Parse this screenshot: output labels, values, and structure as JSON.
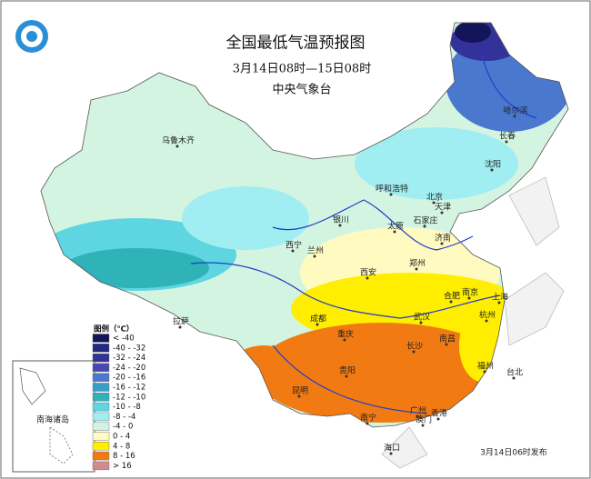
{
  "header": {
    "title": "全国最低气温预报图",
    "subtitle": "3月14日08时—15日08时",
    "issuer": "中央气象台"
  },
  "legend": {
    "title": "图例（℃）",
    "items": [
      {
        "label": "< -40",
        "color": "#14145a"
      },
      {
        "label": "-40 - -32",
        "color": "#1f2a80"
      },
      {
        "label": "-32 - -24",
        "color": "#32329a"
      },
      {
        "label": "-24 - -20",
        "color": "#4848b4"
      },
      {
        "label": "-20 - -16",
        "color": "#4a78cf"
      },
      {
        "label": "-16 - -12",
        "color": "#3a9cc8"
      },
      {
        "label": "-12 - -10",
        "color": "#2fb2b8"
      },
      {
        "label": "-10 - -8",
        "color": "#5ed6e2"
      },
      {
        "label": "-8 - -4",
        "color": "#a0eef2"
      },
      {
        "label": "-4 - 0",
        "color": "#d4f4e2"
      },
      {
        "label": "0 - 4",
        "color": "#fffbc0"
      },
      {
        "label": "4 - 8",
        "color": "#ffee00"
      },
      {
        "label": "8 - 16",
        "color": "#f27a12"
      },
      {
        "label": "> 16",
        "color": "#d28a8a"
      }
    ]
  },
  "cities": [
    "乌鲁木齐",
    "哈尔滨",
    "长春",
    "沈阳",
    "呼和浩特",
    "北京",
    "天津",
    "石家庄",
    "太原",
    "银川",
    "西宁",
    "兰州",
    "济南",
    "郑州",
    "西安",
    "合肥",
    "南京",
    "上海",
    "杭州",
    "武汉",
    "成都",
    "重庆",
    "长沙",
    "南昌",
    "福州",
    "台北",
    "贵阳",
    "昆明",
    "南宁",
    "广州",
    "香港",
    "澳门",
    "海口",
    "拉萨"
  ],
  "inset_label": "南海诸岛",
  "release": "3月14日06时发布"
}
